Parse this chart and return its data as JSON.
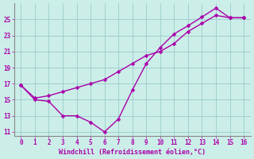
{
  "line1_x": [
    0,
    1,
    2,
    3,
    4,
    5,
    6,
    7,
    8,
    9,
    10,
    11,
    12,
    13,
    14,
    15,
    16
  ],
  "line1_y": [
    16.8,
    15.0,
    14.8,
    13.0,
    13.0,
    12.2,
    11.0,
    12.6,
    16.2,
    19.5,
    21.5,
    23.2,
    24.2,
    25.3,
    26.4,
    25.2,
    25.2
  ],
  "line2_x": [
    0,
    1,
    2,
    3,
    4,
    5,
    6,
    7,
    8,
    9,
    10,
    11,
    12,
    13,
    14,
    15,
    16
  ],
  "line2_y": [
    16.8,
    15.2,
    15.5,
    16.0,
    16.5,
    17.0,
    17.5,
    18.5,
    19.5,
    20.5,
    21.0,
    22.0,
    23.5,
    24.5,
    25.5,
    25.2,
    25.2
  ],
  "line_color": "#aa00aa",
  "bg_color": "#cceee8",
  "grid_color": "#99cccc",
  "xlabel": "Windchill (Refroidissement éolien,°C)",
  "xlim": [
    -0.5,
    16.5
  ],
  "ylim": [
    10.5,
    27.0
  ],
  "yticks": [
    11,
    13,
    15,
    17,
    19,
    21,
    23,
    25
  ],
  "xticks": [
    0,
    1,
    2,
    3,
    4,
    5,
    6,
    7,
    8,
    9,
    10,
    11,
    12,
    13,
    14,
    15,
    16
  ],
  "markersize": 2.5,
  "linewidth": 1.0,
  "tick_fontsize": 5.5,
  "xlabel_fontsize": 6.0
}
